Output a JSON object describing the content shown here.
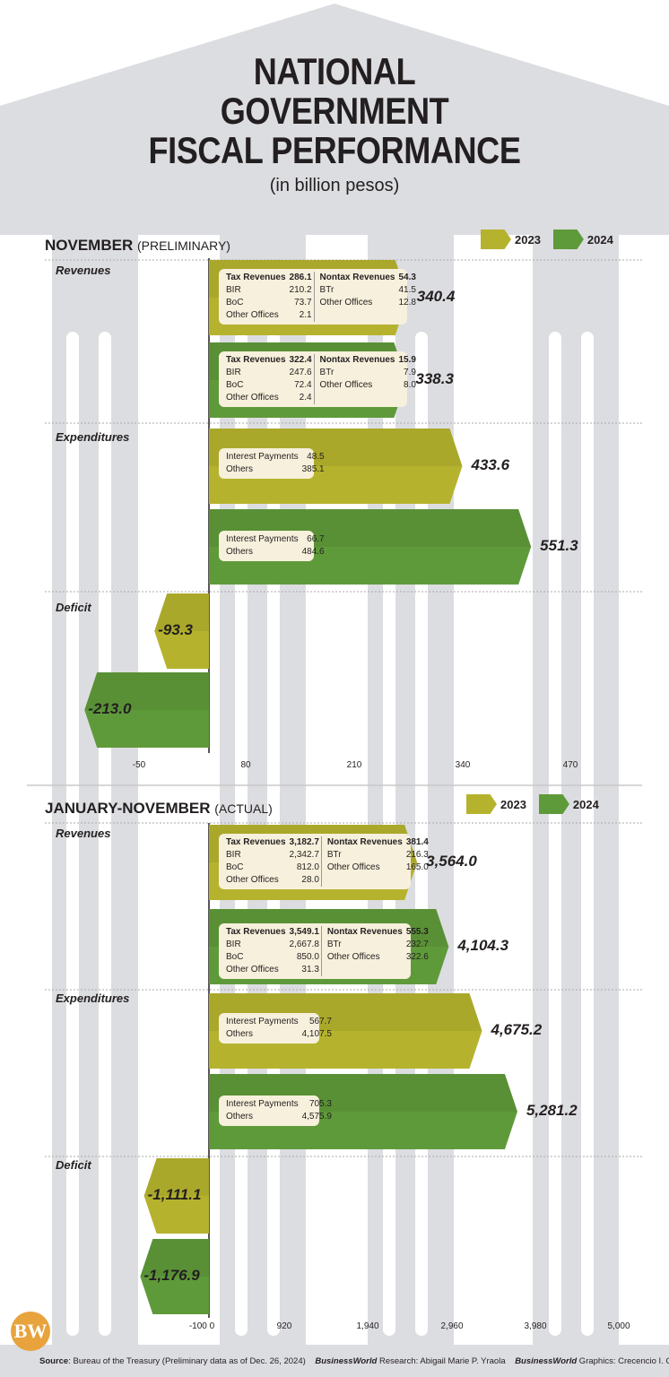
{
  "title": {
    "line1": "NATIONAL",
    "line2": "GOVERNMENT",
    "line3": "FISCAL PERFORMANCE",
    "subtitle": "(in billion pesos)"
  },
  "colors": {
    "y2023": "#b5b32e",
    "y2024": "#5f9a3a",
    "box": "#f7f0dc",
    "column": "#dcdde1"
  },
  "legend": {
    "y2023": "2023",
    "y2024": "2024"
  },
  "footer": {
    "source_label": "Source",
    "source_text": ": Bureau of the Treasury (Preliminary data as of Dec. 26, 2024)",
    "research_label": "BusinessWorld",
    "research_text": " Research:  Abigail Marie P. Yraola",
    "graphics_label": "BusinessWorld",
    "graphics_text": " Graphics: Crecencio I. Cruz",
    "logo": "BW"
  },
  "chart_data": [
    {
      "type": "bar",
      "orientation": "horizontal",
      "title": "NOVEMBER",
      "qualifier": "(PRELIMINARY)",
      "x_ticks": [
        "-50",
        "80",
        "210",
        "340",
        "470"
      ],
      "categories": [
        "Revenues",
        "Expenditures",
        "Deficit"
      ],
      "series": [
        {
          "name": "2023",
          "values": [
            340.4,
            433.6,
            -93.3
          ]
        },
        {
          "name": "2024",
          "values": [
            338.3,
            551.3,
            -213.0
          ]
        }
      ],
      "value_labels": {
        "2023": [
          "340.4",
          "433.6",
          "-93.3"
        ],
        "2024": [
          "338.3",
          "551.3",
          "-213.0"
        ]
      },
      "breakdowns": {
        "revenues_2023": {
          "tax_label": "Tax Revenues",
          "tax": "286.1",
          "bir": "210.2",
          "boc": "73.7",
          "other": "2.1",
          "nontax_label": "Nontax Revenues",
          "nontax": "54.3",
          "btr": "41.5",
          "nontax_other": "12.8"
        },
        "revenues_2024": {
          "tax_label": "Tax Revenues",
          "tax": "322.4",
          "bir": "247.6",
          "boc": "72.4",
          "other": "2.4",
          "nontax_label": "Nontax Revenues",
          "nontax": "15.9",
          "btr": "7.9",
          "nontax_other": "8.0"
        },
        "expenditures_2023": {
          "interest_label": "Interest Payments",
          "interest": "48.5",
          "others_label": "Others",
          "others": "385.1"
        },
        "expenditures_2024": {
          "interest_label": "Interest Payments",
          "interest": "66.7",
          "others_label": "Others",
          "others": "484.6"
        }
      }
    },
    {
      "type": "bar",
      "orientation": "horizontal",
      "title": "JANUARY-NOVEMBER",
      "qualifier": "(ACTUAL)",
      "x_ticks": [
        "-100 0",
        "920",
        "1,940",
        "2,960",
        "3,980",
        "5,000"
      ],
      "categories": [
        "Revenues",
        "Expenditures",
        "Deficit"
      ],
      "series": [
        {
          "name": "2023",
          "values": [
            3564.0,
            4675.2,
            -1111.1
          ]
        },
        {
          "name": "2024",
          "values": [
            4104.3,
            5281.2,
            -1176.9
          ]
        }
      ],
      "value_labels": {
        "2023": [
          "3,564.0",
          "4,675.2",
          "-1,111.1"
        ],
        "2024": [
          "4,104.3",
          "5,281.2",
          "-1,176.9"
        ]
      },
      "breakdowns": {
        "revenues_2023": {
          "tax_label": "Tax Revenues",
          "tax": "3,182.7",
          "bir": "2,342.7",
          "boc": "812.0",
          "other": "28.0",
          "nontax_label": "Nontax Revenues",
          "nontax": "381.4",
          "btr": "216.3",
          "nontax_other": "165.0"
        },
        "revenues_2024": {
          "tax_label": "Tax Revenues",
          "tax": "3,549.1",
          "bir": "2,667.8",
          "boc": "850.0",
          "other": "31.3",
          "nontax_label": "Nontax Revenues",
          "nontax": "555.3",
          "btr": "232.7",
          "nontax_other": "322.6"
        },
        "expenditures_2023": {
          "interest_label": "Interest Payments",
          "interest": "567.7",
          "others_label": "Others",
          "others": "4,107.5"
        },
        "expenditures_2024": {
          "interest_label": "Interest Payments",
          "interest": "705.3",
          "others_label": "Others",
          "others": "4,575.9"
        }
      }
    }
  ],
  "labels": {
    "bir": "BIR",
    "boc": "BoC",
    "other_offices": "Other Offices",
    "btr": "BTr"
  }
}
